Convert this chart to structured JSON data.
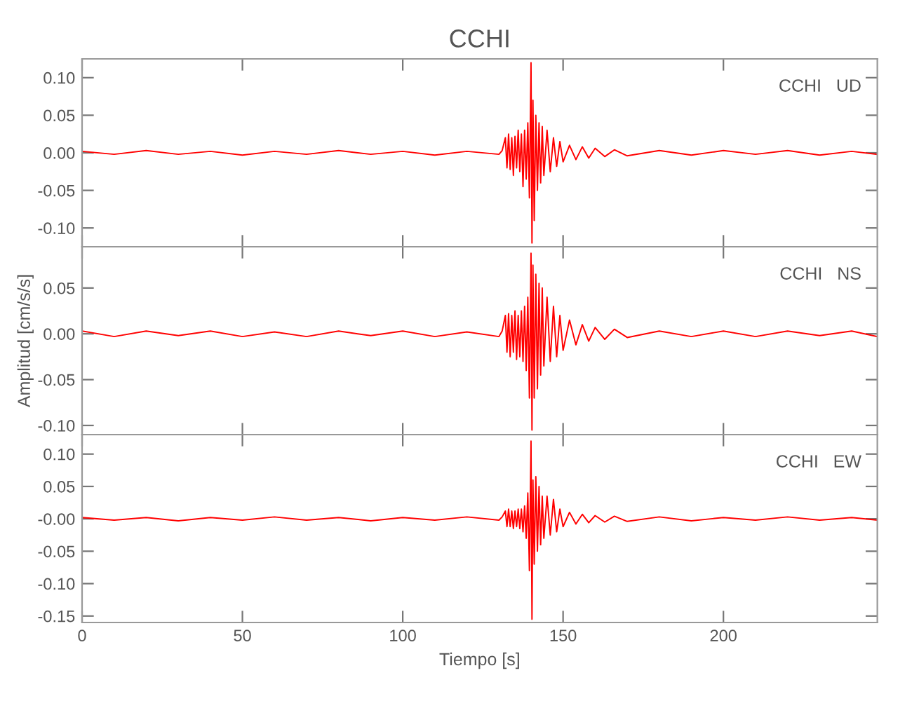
{
  "chart_data": [
    {
      "type": "line",
      "title": "CCHI",
      "annotations": [
        "CCHI   UD"
      ],
      "xlim": [
        0,
        248
      ],
      "xticks": [
        0,
        50,
        100,
        150,
        200
      ],
      "ylim": [
        -0.125,
        0.125
      ],
      "yticks": [
        {
          "value": -0.1,
          "label": "-0.10"
        },
        {
          "value": -0.05,
          "label": "-0.05"
        },
        {
          "value": 0,
          "label": "0.00"
        },
        {
          "value": 0.05,
          "label": "0.05"
        },
        {
          "value": 0.1,
          "label": "0.10"
        }
      ],
      "tick_labels": "y",
      "grid": false,
      "x": [
        0,
        10,
        20,
        30,
        40,
        50,
        60,
        70,
        80,
        90,
        100,
        110,
        120,
        130,
        131,
        132,
        132.5,
        133,
        133.5,
        134,
        134.5,
        135,
        135.5,
        136,
        136.5,
        137,
        137.5,
        138,
        138.5,
        139,
        139.5,
        140,
        140.3,
        140.6,
        141,
        141.5,
        142,
        142.5,
        143,
        143.5,
        144,
        145,
        146,
        147,
        148,
        149,
        150,
        152,
        154,
        156,
        158,
        160,
        163,
        166,
        170,
        180,
        190,
        200,
        210,
        220,
        230,
        240,
        248
      ],
      "series": [
        {
          "color": "#ff0000",
          "values": [
            0.002,
            -0.002,
            0.003,
            -0.002,
            0.002,
            -0.003,
            0.002,
            -0.002,
            0.003,
            -0.002,
            0.002,
            -0.003,
            0.002,
            -0.002,
            0.003,
            0.02,
            -0.02,
            0.025,
            -0.022,
            0.02,
            -0.03,
            0.022,
            -0.02,
            0.03,
            -0.025,
            0.025,
            -0.045,
            0.03,
            -0.035,
            0.04,
            -0.06,
            0.12,
            -0.12,
            0.07,
            -0.09,
            0.05,
            -0.05,
            0.04,
            -0.04,
            0.035,
            -0.03,
            0.03,
            -0.025,
            0.02,
            -0.018,
            0.015,
            -0.012,
            0.01,
            -0.009,
            0.008,
            -0.007,
            0.006,
            -0.005,
            0.004,
            -0.004,
            0.003,
            -0.003,
            0.003,
            -0.002,
            0.003,
            -0.003,
            0.002,
            -0.002
          ]
        }
      ]
    },
    {
      "type": "line",
      "ylabel": "Amplitud [cm/s/s]",
      "annotations": [
        "CCHI   NS"
      ],
      "xlim": [
        0,
        248
      ],
      "xticks": [
        0,
        50,
        100,
        150,
        200
      ],
      "ylim": [
        -0.11,
        0.095
      ],
      "yticks": [
        {
          "value": -0.1,
          "label": "-0.10"
        },
        {
          "value": -0.05,
          "label": "-0.05"
        },
        {
          "value": 0,
          "label": "0.00"
        },
        {
          "value": 0.05,
          "label": "0.05"
        }
      ],
      "tick_labels": "y",
      "grid": false,
      "x": [
        0,
        10,
        20,
        30,
        40,
        50,
        60,
        70,
        80,
        90,
        100,
        110,
        120,
        130,
        131,
        132,
        132.5,
        133,
        133.5,
        134,
        134.5,
        135,
        135.5,
        136,
        136.5,
        137,
        137.5,
        138,
        138.5,
        139,
        139.5,
        140,
        140.3,
        140.6,
        141,
        141.5,
        142,
        142.5,
        143,
        143.5,
        144,
        145,
        146,
        147,
        148,
        149,
        150,
        152,
        154,
        156,
        158,
        160,
        163,
        166,
        170,
        180,
        190,
        200,
        210,
        220,
        230,
        240,
        248
      ],
      "series": [
        {
          "color": "#ff0000",
          "values": [
            0.003,
            -0.003,
            0.003,
            -0.002,
            0.003,
            -0.003,
            0.002,
            -0.003,
            0.003,
            -0.002,
            0.003,
            -0.003,
            0.002,
            -0.003,
            0.003,
            0.02,
            -0.02,
            0.022,
            -0.025,
            0.02,
            -0.02,
            0.025,
            -0.028,
            0.02,
            -0.025,
            0.025,
            -0.03,
            0.03,
            -0.04,
            0.04,
            -0.07,
            0.088,
            -0.105,
            0.075,
            -0.07,
            0.065,
            -0.06,
            0.055,
            -0.045,
            0.05,
            -0.035,
            0.04,
            -0.03,
            0.03,
            -0.025,
            0.02,
            -0.018,
            0.015,
            -0.012,
            0.01,
            -0.008,
            0.007,
            -0.006,
            0.005,
            -0.004,
            0.003,
            -0.003,
            0.003,
            -0.003,
            0.003,
            -0.002,
            0.003,
            -0.003
          ]
        }
      ]
    },
    {
      "type": "line",
      "xlabel": "Tiempo [s]",
      "annotations": [
        "CCHI   EW"
      ],
      "xlim": [
        0,
        248
      ],
      "xticks": [
        0,
        50,
        100,
        150,
        200
      ],
      "ylim": [
        -0.16,
        0.13
      ],
      "yticks": [
        {
          "value": -0.15,
          "label": "-0.15"
        },
        {
          "value": -0.1,
          "label": "-0.10"
        },
        {
          "value": -0.05,
          "label": "-0.05"
        },
        {
          "value": 0,
          "label": "-0.00"
        },
        {
          "value": 0.05,
          "label": "0.05"
        },
        {
          "value": 0.1,
          "label": "0.10"
        }
      ],
      "grid": false,
      "x": [
        0,
        10,
        20,
        30,
        40,
        50,
        60,
        70,
        80,
        90,
        100,
        110,
        120,
        130,
        131,
        132,
        132.5,
        133,
        133.5,
        134,
        134.5,
        135,
        135.5,
        136,
        136.5,
        137,
        137.5,
        138,
        138.5,
        139,
        139.5,
        140,
        140.3,
        140.6,
        141,
        141.5,
        142,
        142.5,
        143,
        143.5,
        144,
        145,
        146,
        147,
        148,
        149,
        150,
        152,
        154,
        156,
        158,
        160,
        163,
        166,
        170,
        180,
        190,
        200,
        210,
        220,
        230,
        240,
        248
      ],
      "series": [
        {
          "color": "#ff0000",
          "values": [
            0.002,
            -0.002,
            0.002,
            -0.003,
            0.002,
            -0.002,
            0.003,
            -0.002,
            0.002,
            -0.003,
            0.002,
            -0.002,
            0.003,
            -0.002,
            0.003,
            0.012,
            -0.012,
            0.015,
            -0.012,
            0.012,
            -0.015,
            0.012,
            -0.012,
            0.015,
            -0.015,
            0.015,
            -0.02,
            0.02,
            -0.03,
            0.04,
            -0.08,
            0.12,
            -0.155,
            0.06,
            -0.07,
            0.065,
            -0.05,
            0.05,
            -0.04,
            0.035,
            -0.03,
            0.035,
            -0.025,
            0.03,
            -0.02,
            0.015,
            -0.012,
            0.01,
            -0.008,
            0.007,
            -0.006,
            0.005,
            -0.005,
            0.004,
            -0.004,
            0.003,
            -0.003,
            0.002,
            -0.002,
            0.003,
            -0.002,
            0.002,
            -0.002
          ]
        }
      ]
    }
  ]
}
